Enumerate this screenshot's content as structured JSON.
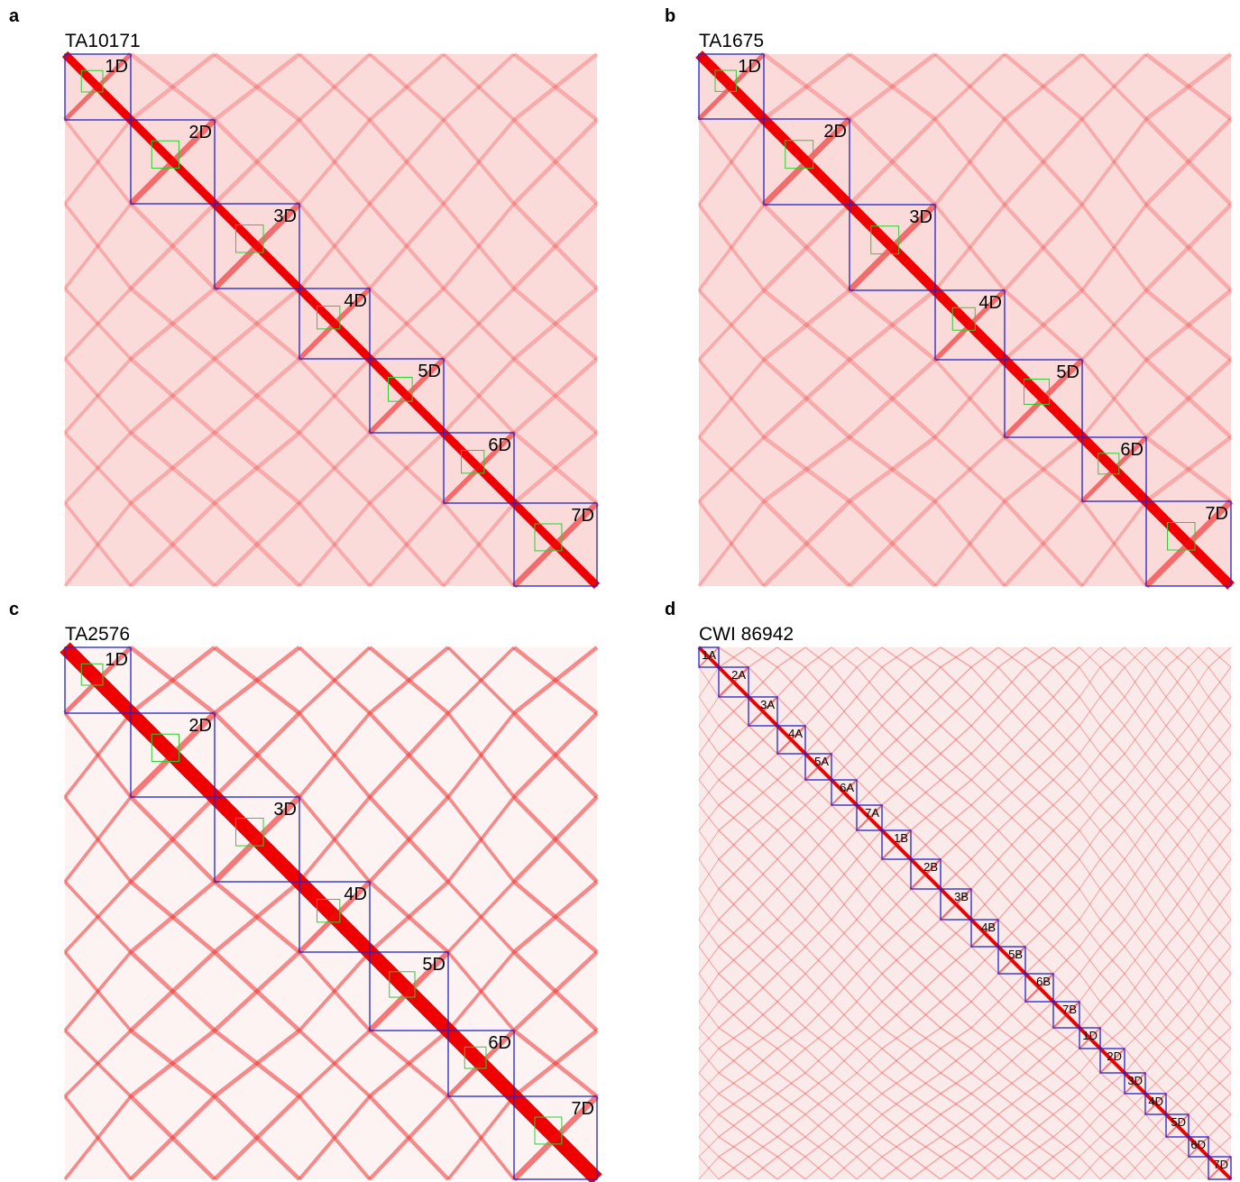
{
  "panels": [
    {
      "letter": "a",
      "title": "TA10171",
      "labels": [
        "1D",
        "2D",
        "3D",
        "4D",
        "5D",
        "6D",
        "7D"
      ]
    },
    {
      "letter": "b",
      "title": "TA1675",
      "labels": [
        "1D",
        "2D",
        "3D",
        "4D",
        "5D",
        "6D",
        "7D"
      ]
    },
    {
      "letter": "c",
      "title": "TA2576",
      "labels": [
        "1D",
        "2D",
        "3D",
        "4D",
        "5D",
        "6D",
        "7D"
      ]
    },
    {
      "letter": "d",
      "title": "CWI 86942",
      "labels": [
        "1A",
        "2A",
        "3A",
        "4A",
        "5A",
        "6A",
        "7A",
        "1B",
        "2B",
        "3B",
        "4B",
        "5B",
        "6B",
        "7B",
        "1D",
        "2D",
        "3D",
        "4D",
        "5D",
        "6D",
        "7D"
      ]
    }
  ]
}
